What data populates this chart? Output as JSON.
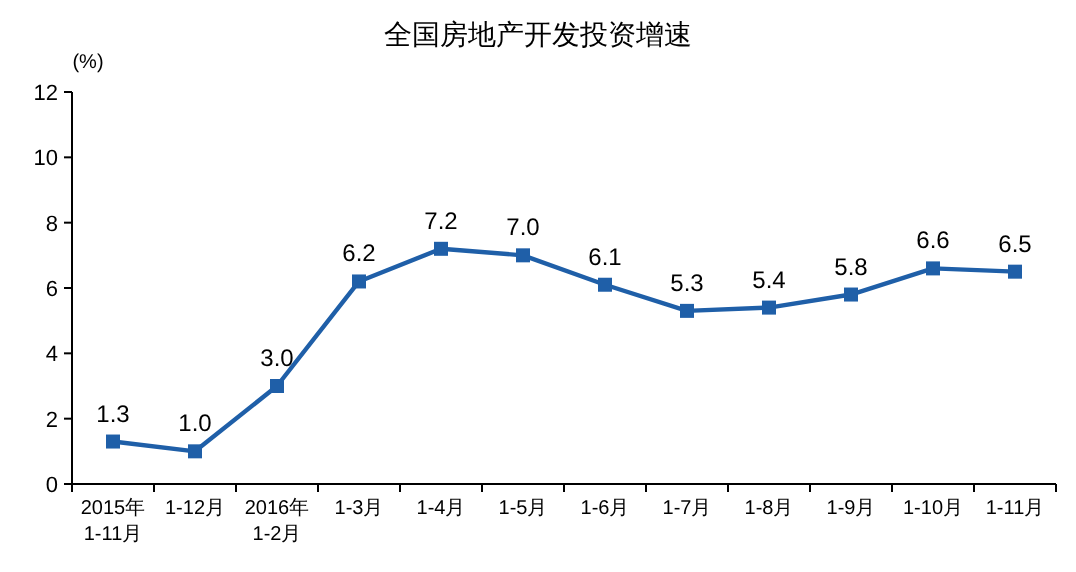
{
  "chart_data": {
    "type": "line",
    "title": "全国房地产开发投资增速",
    "ylabel": "(%)",
    "categories": [
      "2015年\n1-11月",
      "1-12月",
      "2016年\n1-2月",
      "1-3月",
      "1-4月",
      "1-5月",
      "1-6月",
      "1-7月",
      "1-8月",
      "1-9月",
      "1-10月",
      "1-11月"
    ],
    "series": [
      {
        "color": "#1f5fa8",
        "values": [
          1.3,
          1.0,
          3.0,
          6.2,
          7.2,
          7.0,
          6.1,
          5.3,
          5.4,
          5.8,
          6.6,
          6.5
        ],
        "value_labels": [
          "1.3",
          "1.0",
          "3.0",
          "6.2",
          "7.2",
          "7.0",
          "6.1",
          "5.3",
          "5.4",
          "5.8",
          "6.6",
          "6.5"
        ]
      }
    ],
    "ylim": [
      0,
      12
    ],
    "yticks": [
      0,
      2,
      4,
      6,
      8,
      10,
      12
    ],
    "marker": "square",
    "line_style": "solid",
    "grid": false
  }
}
